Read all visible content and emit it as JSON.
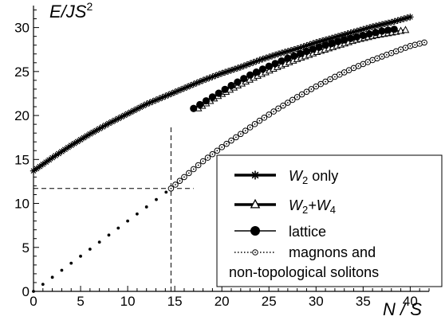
{
  "chart_data": {
    "type": "line",
    "xlabel": "N / S",
    "ylabel": "E/JS²",
    "ylabel_parts": {
      "base": "E/JS",
      "sup": "2"
    },
    "xlim": [
      0,
      42
    ],
    "ylim": [
      0,
      32.5
    ],
    "x_ticks": [
      0,
      5,
      10,
      15,
      20,
      25,
      30,
      35,
      40
    ],
    "y_ticks": [
      0,
      5,
      10,
      15,
      20,
      25,
      30
    ],
    "grid": false,
    "legend_position": "bottom-right",
    "annotations": [
      {
        "type": "dashed-guide",
        "x": 14.6,
        "y": 11.7
      }
    ],
    "series": [
      {
        "name": "W2 only",
        "legend_parts": {
          "base": "W",
          "sub": "2",
          "rest": " only"
        },
        "marker": "asterisk",
        "x": [
          0,
          2,
          4,
          6,
          8,
          10,
          12,
          14,
          16,
          18,
          20,
          22,
          24,
          26,
          28,
          30,
          32,
          34,
          36,
          38,
          40
        ],
        "y": [
          13.7,
          15.2,
          16.6,
          17.9,
          19.1,
          20.2,
          21.3,
          22.2,
          23.1,
          24.0,
          24.8,
          25.5,
          26.3,
          27.0,
          27.6,
          28.3,
          28.9,
          29.5,
          30.1,
          30.6,
          31.2
        ]
      },
      {
        "name": "W2+W4",
        "legend_parts": {
          "base": "W",
          "sub": "2",
          "mid": "+W",
          "sub2": "4"
        },
        "marker": "triangle",
        "x": [
          17.5,
          19.6,
          21.7,
          23.8,
          25.9,
          28.0,
          30.1,
          32.2,
          34.3,
          36.4,
          38.5,
          39.5
        ],
        "y": [
          20.8,
          22.2,
          23.4,
          24.5,
          25.5,
          26.4,
          27.2,
          27.9,
          28.6,
          29.1,
          29.5,
          29.7
        ]
      },
      {
        "name": "lattice",
        "legend_parts": {
          "base": "lattice"
        },
        "marker": "filled-circle",
        "x": [
          17.0,
          19.0,
          21.0,
          23.0,
          25.0,
          27.0,
          29.0,
          31.0,
          33.0,
          35.0,
          37.0,
          38.3
        ],
        "y": [
          20.8,
          22.1,
          23.4,
          24.6,
          25.6,
          26.5,
          27.3,
          28.0,
          28.6,
          29.1,
          29.6,
          29.8
        ]
      },
      {
        "name": "magnons and non-topological solitons",
        "legend_lines": [
          "magnons and",
          "non-topological solitons"
        ],
        "marker": "open-circle",
        "x": [
          0,
          2,
          4,
          6,
          8,
          10,
          12,
          14.6,
          16,
          18,
          20,
          22,
          24,
          26,
          28,
          30,
          32,
          34,
          36,
          38,
          40,
          41.5
        ],
        "y": [
          0.0,
          1.6,
          3.2,
          4.8,
          6.4,
          8.0,
          9.6,
          11.7,
          13.0,
          14.8,
          16.4,
          17.9,
          19.4,
          20.8,
          22.1,
          23.3,
          24.4,
          25.4,
          26.3,
          27.1,
          27.9,
          28.3
        ]
      }
    ]
  }
}
